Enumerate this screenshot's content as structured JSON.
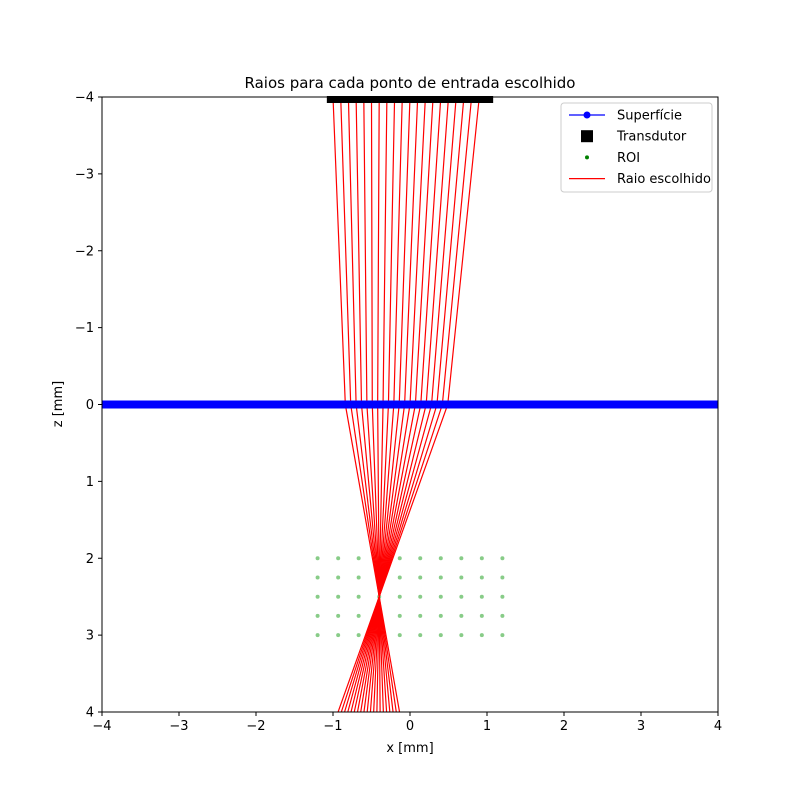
{
  "chart_data": {
    "type": "line",
    "title": "Raios para cada ponto de entrada escolhido",
    "xlabel": "x [mm]",
    "ylabel": "z [mm]",
    "xlim": [
      -4,
      4
    ],
    "ylim": [
      -4,
      4
    ],
    "y_axis_inverted": true,
    "x_ticks": [
      -4,
      -3,
      -2,
      -1,
      0,
      1,
      2,
      3,
      4
    ],
    "y_ticks": [
      -4,
      -3,
      -2,
      -1,
      0,
      1,
      2,
      3,
      4
    ],
    "x_tick_labels": [
      "−4",
      "−3",
      "−2",
      "−1",
      "0",
      "1",
      "2",
      "3",
      "4"
    ],
    "y_tick_labels": [
      "−4",
      "−3",
      "−2",
      "−1",
      "0",
      "1",
      "2",
      "3",
      "4"
    ],
    "grid": false,
    "legend_placement": "top-right",
    "legend": [
      {
        "label": "Superfície",
        "marker": "line-dot",
        "color": "#0000ff"
      },
      {
        "label": "Transdutor",
        "marker": "square",
        "color": "#000000"
      },
      {
        "label": "ROI",
        "marker": "dot",
        "color": "#008000"
      },
      {
        "label": "Raio escolhido",
        "marker": "line",
        "color": "#ff0000"
      }
    ],
    "surface": {
      "z": 0,
      "x_range": [
        -4,
        4
      ],
      "color": "#0000ff"
    },
    "transducer": {
      "z": -4,
      "x_range": [
        -1.08,
        1.08
      ],
      "color": "#000000"
    },
    "roi": {
      "x": [
        -1.2,
        -0.933,
        -0.667,
        -0.4,
        -0.133,
        0.133,
        0.4,
        0.667,
        0.933,
        1.2
      ],
      "z": [
        2.0,
        2.25,
        2.5,
        2.75,
        3.0
      ],
      "color": "#88cc88"
    },
    "focus": {
      "x": -0.4,
      "z": 2.5
    },
    "rays": {
      "color": "#ff0000",
      "element_x": [
        -1.0,
        -0.9,
        -0.8,
        -0.7,
        -0.6,
        -0.5,
        -0.4,
        -0.3,
        -0.2,
        -0.1,
        0.0,
        0.1,
        0.2,
        0.3,
        0.4,
        0.5,
        0.6,
        0.7,
        0.8,
        0.9
      ],
      "entry_x": [
        -0.84,
        -0.77,
        -0.7,
        -0.63,
        -0.56,
        -0.49,
        -0.42,
        -0.35,
        -0.28,
        -0.21,
        -0.14,
        -0.07,
        0.0,
        0.07,
        0.14,
        0.21,
        0.28,
        0.35,
        0.42,
        0.49
      ],
      "end_z": 4
    }
  }
}
